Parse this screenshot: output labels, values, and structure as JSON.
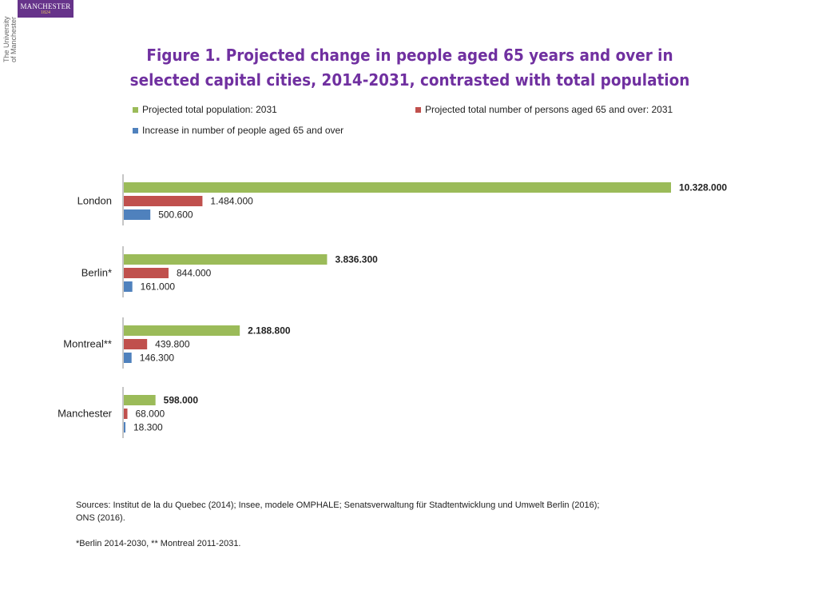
{
  "logo": {
    "name": "MANCHESTER",
    "year": "1824",
    "vertical_line1": "The University",
    "vertical_line2": "of Manchester",
    "colors": {
      "background": "#66338a",
      "year": "#e8c860"
    }
  },
  "chart_data": {
    "type": "bar",
    "orientation": "horizontal",
    "title": "Figure 1. Projected change in people aged 65 years and over in selected capital cities, 2014-2031, contrasted with total population",
    "title_lines": [
      "Figure 1. Projected change in people aged 65 years and over in",
      "selected capital cities, 2014-2031, contrasted with total population"
    ],
    "categories": [
      "London",
      "Berlin*",
      "Montreal**",
      "Manchester"
    ],
    "series": [
      {
        "name": "Projected total population: 2031",
        "color": "#9bbb59",
        "values": [
          10328000,
          3836300,
          2188800,
          598000
        ],
        "labels": [
          "10.328.000",
          "3.836.300",
          "2.188.800",
          "598.000"
        ],
        "label_bold": true
      },
      {
        "name": "Projected total number of persons aged 65 and over: 2031",
        "color": "#c0504d",
        "values": [
          1484000,
          844000,
          439800,
          68000
        ],
        "labels": [
          "1.484.000",
          "844.000",
          "439.800",
          "68.000"
        ],
        "label_bold": false
      },
      {
        "name": "Increase in number of people aged 65 and over",
        "color": "#4f81bd",
        "values": [
          500600,
          161000,
          146300,
          18300
        ],
        "labels": [
          "500.600",
          "161.000",
          "146.300",
          "18.300"
        ],
        "label_bold": false
      }
    ],
    "xlim": [
      0,
      10328000
    ],
    "grid": false,
    "legend_position": "top"
  },
  "sources_line1": "Sources: Institut de la du Quebec (2014); Insee, modele OMPHALE; Senatsverwaltung für Stadtentwicklung und Umwelt Berlin (2016);",
  "sources_line2": "ONS (2016).",
  "note": "*Berlin 2014-2030, ** Montreal 2011-2031."
}
